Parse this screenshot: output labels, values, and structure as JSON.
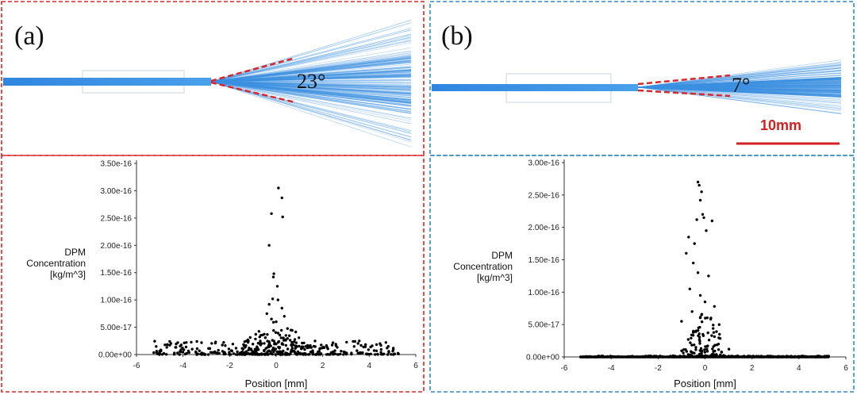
{
  "panels": [
    {
      "label": "(a)",
      "border_color": "#d9262b",
      "spray_angle_label": "23°",
      "spray_half_angle_deg": 11.5
    },
    {
      "label": "(b)",
      "border_color": "#2e8cc8",
      "spray_angle_label": "7°",
      "spray_half_angle_deg": 3.5,
      "scale_bar_label": "10mm"
    }
  ],
  "colors": {
    "spray": "#3a8fe0",
    "dashed_angle": "#d9262b",
    "points": "#000000",
    "scale_bar": "#d42020"
  },
  "chart_data": [
    {
      "type": "scatter",
      "panel": "(a)",
      "xlabel": "Position [mm]",
      "ylabel": [
        "DPM",
        "Concentration",
        "[kg/m^3]"
      ],
      "xlim": [
        -6,
        6
      ],
      "ylim": [
        0,
        3.5e-16
      ],
      "xticks": [
        -6,
        -4,
        -2,
        0,
        2,
        4,
        6
      ],
      "yticks": [
        0,
        5e-17,
        1e-16,
        1.5e-16,
        2e-16,
        2.5e-16,
        3e-16,
        3.5e-16
      ],
      "ytick_labels": [
        "0.00e+00",
        "5.00e-17",
        "1.00e-16",
        "1.50e-16",
        "2.00e-16",
        "2.50e-16",
        "3.00e-16",
        "3.50e-16"
      ],
      "x_range": [
        -5.3,
        5.3
      ],
      "grid": false,
      "peak_points": [
        [
          0.1,
          3.05e-16
        ],
        [
          0.25,
          2.87e-16
        ],
        [
          -0.2,
          2.58e-16
        ],
        [
          0.28,
          2.52e-16
        ],
        [
          -0.3,
          2e-16
        ],
        [
          -0.1,
          1.48e-16
        ],
        [
          -0.12,
          1.42e-16
        ],
        [
          0.05,
          1.25e-16
        ],
        [
          -0.15,
          1.02e-16
        ],
        [
          0.08,
          1e-16
        ],
        [
          -0.3,
          9.2e-17
        ],
        [
          0.25,
          8.5e-17
        ],
        [
          -0.4,
          7.5e-17
        ],
        [
          0.35,
          7e-17
        ],
        [
          -0.2,
          6.5e-17
        ],
        [
          0.0,
          6e-17
        ]
      ],
      "noise": {
        "center_sigma_mm": 1.0,
        "core_count": 160,
        "baseline_count": 280,
        "baseline_max": 2.5e-17,
        "seed": 7
      }
    },
    {
      "type": "scatter",
      "panel": "(b)",
      "xlabel": "Position [mm]",
      "ylabel": [
        "DPM",
        "Concentration",
        "[kg/m^3]"
      ],
      "xlim": [
        -6,
        6
      ],
      "ylim": [
        0,
        3e-16
      ],
      "xticks": [
        -6,
        -4,
        -2,
        0,
        2,
        4,
        6
      ],
      "yticks": [
        0,
        5e-17,
        1e-16,
        1.5e-16,
        2e-16,
        2.5e-16,
        3e-16
      ],
      "ytick_labels": [
        "0.00e+00",
        "5.00e-17",
        "1.00e-16",
        "1.50e-16",
        "2.00e-16",
        "2.50e-16",
        "3.00e-16"
      ],
      "x_range": [
        -5.3,
        5.3
      ],
      "grid": false,
      "peak_points": [
        [
          -0.3,
          2.7e-16
        ],
        [
          -0.25,
          2.65e-16
        ],
        [
          -0.15,
          2.55e-16
        ],
        [
          -0.2,
          2.42e-16
        ],
        [
          -0.1,
          2.2e-16
        ],
        [
          -0.05,
          2.15e-16
        ],
        [
          0.3,
          2.1e-16
        ],
        [
          -0.35,
          2.12e-16
        ],
        [
          -0.7,
          1.85e-16
        ],
        [
          0.05,
          1.95e-16
        ],
        [
          -0.45,
          1.75e-16
        ],
        [
          -0.8,
          1.6e-16
        ],
        [
          -0.5,
          1.45e-16
        ],
        [
          -0.3,
          1.3e-16
        ],
        [
          0.15,
          1.25e-16
        ],
        [
          -0.65,
          1.05e-16
        ],
        [
          -0.2,
          9.5e-17
        ],
        [
          0.0,
          8.5e-17
        ],
        [
          0.4,
          7.8e-17
        ],
        [
          -0.55,
          7e-17
        ],
        [
          -0.15,
          6.5e-17
        ],
        [
          0.25,
          6e-17
        ],
        [
          -1.0,
          5.5e-17
        ],
        [
          0.6,
          5e-17
        ]
      ],
      "noise": {
        "center_sigma_mm": 0.55,
        "core_count": 110,
        "baseline_count": 300,
        "baseline_max": 1.5e-18,
        "seed": 11
      }
    }
  ]
}
